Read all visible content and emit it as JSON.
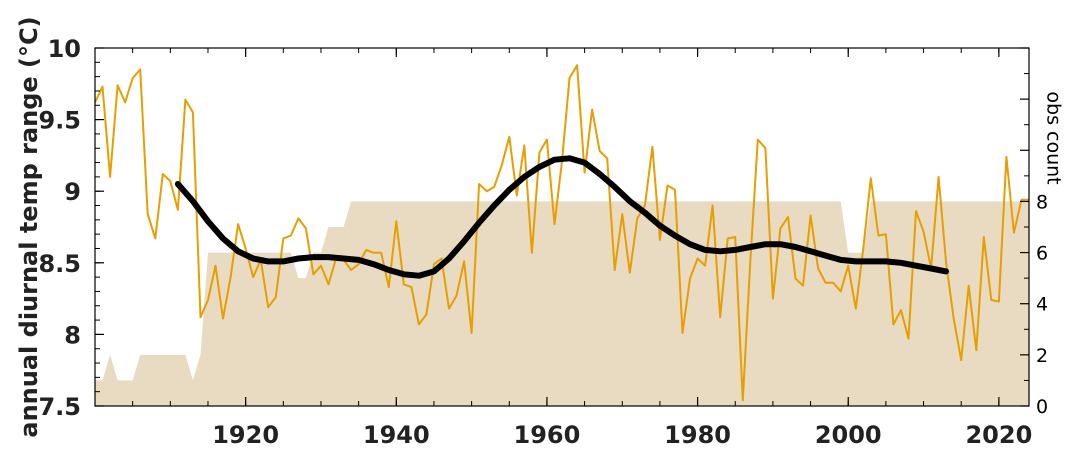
{
  "chart_data": {
    "type": "line",
    "ylabel": "annual diurnal temp range (°C)",
    "y2label": "obs count",
    "xlim": [
      1900,
      2024
    ],
    "ylim": [
      7.5,
      10
    ],
    "y2lim": [
      0,
      14
    ],
    "x_ticks": [
      1920,
      1940,
      1960,
      1980,
      2000,
      2020
    ],
    "x_tick_labels": [
      "1920",
      "1940",
      "1960",
      "1980",
      "2000",
      "2020"
    ],
    "y_ticks": [
      7.5,
      8,
      8.5,
      9,
      9.5,
      10
    ],
    "y_tick_labels": [
      "7.5",
      "8",
      "8.5",
      "9",
      "9.5",
      "10"
    ],
    "y2_ticks": [
      0,
      2,
      4,
      6,
      8
    ],
    "y2_tick_labels": [
      "0",
      "2",
      "4",
      "6",
      "8"
    ],
    "colors": {
      "annual": "#e69f00",
      "smooth": "#000000",
      "count": "#e8dbc1"
    },
    "series": [
      {
        "role": "annual",
        "x": [
          1900,
          1901,
          1902,
          1903,
          1904,
          1905,
          1906,
          1907,
          1908,
          1909,
          1910,
          1911,
          1912,
          1913,
          1914,
          1915,
          1916,
          1917,
          1918,
          1919,
          1920,
          1921,
          1922,
          1923,
          1924,
          1925,
          1926,
          1927,
          1928,
          1929,
          1930,
          1931,
          1932,
          1933,
          1934,
          1935,
          1936,
          1937,
          1938,
          1939,
          1940,
          1941,
          1942,
          1943,
          1944,
          1945,
          1946,
          1947,
          1948,
          1949,
          1950,
          1951,
          1952,
          1953,
          1954,
          1955,
          1956,
          1957,
          1958,
          1959,
          1960,
          1961,
          1962,
          1963,
          1964,
          1965,
          1966,
          1967,
          1968,
          1969,
          1970,
          1971,
          1972,
          1973,
          1974,
          1975,
          1976,
          1977,
          1978,
          1979,
          1980,
          1981,
          1982,
          1983,
          1984,
          1985,
          1986,
          1987,
          1988,
          1989,
          1990,
          1991,
          1992,
          1993,
          1994,
          1995,
          1996,
          1997,
          1998,
          1999,
          2000,
          2001,
          2002,
          2003,
          2004,
          2005,
          2006,
          2007,
          2008,
          2009,
          2010,
          2011,
          2012,
          2013,
          2014,
          2015,
          2016,
          2017,
          2018,
          2019,
          2020,
          2021,
          2022,
          2023,
          2024
        ],
        "y": [
          9.62,
          9.73,
          9.1,
          9.74,
          9.62,
          9.79,
          9.85,
          8.84,
          8.67,
          9.12,
          9.07,
          8.87,
          9.64,
          9.55,
          8.12,
          8.24,
          8.48,
          8.11,
          8.4,
          8.77,
          8.6,
          8.4,
          8.52,
          8.19,
          8.26,
          8.67,
          8.69,
          8.81,
          8.74,
          8.42,
          8.48,
          8.35,
          8.53,
          8.52,
          8.45,
          8.49,
          8.59,
          8.57,
          8.57,
          8.33,
          8.79,
          8.35,
          8.33,
          8.07,
          8.14,
          8.49,
          8.53,
          8.18,
          8.27,
          8.51,
          8.01,
          9.05,
          9.0,
          9.03,
          9.18,
          9.38,
          8.97,
          9.32,
          8.57,
          9.27,
          9.36,
          8.77,
          9.21,
          9.79,
          9.88,
          9.13,
          9.57,
          9.28,
          9.23,
          8.45,
          8.84,
          8.43,
          8.81,
          8.9,
          9.31,
          8.66,
          9.04,
          9.01,
          8.01,
          8.39,
          8.53,
          8.48,
          8.9,
          8.12,
          8.67,
          8.68,
          7.54,
          8.51,
          9.36,
          9.3,
          8.25,
          8.74,
          8.82,
          8.39,
          8.34,
          8.83,
          8.46,
          8.36,
          8.36,
          8.3,
          8.48,
          8.18,
          8.6,
          9.09,
          8.69,
          8.7,
          8.07,
          8.17,
          7.97,
          8.86,
          8.72,
          8.46,
          9.1,
          8.5,
          8.11,
          7.82,
          8.34,
          7.89,
          8.68,
          8.24,
          8.23,
          9.24,
          8.71,
          8.94,
          8.94
        ]
      },
      {
        "role": "smoothed",
        "x": [
          1911,
          1913,
          1915,
          1917,
          1919,
          1921,
          1923,
          1925,
          1927,
          1929,
          1931,
          1933,
          1935,
          1937,
          1939,
          1941,
          1943,
          1945,
          1947,
          1949,
          1951,
          1953,
          1955,
          1957,
          1959,
          1961,
          1963,
          1965,
          1967,
          1969,
          1971,
          1973,
          1975,
          1977,
          1979,
          1981,
          1983,
          1985,
          1987,
          1989,
          1991,
          1993,
          1995,
          1997,
          1999,
          2001,
          2003,
          2005,
          2007,
          2009,
          2011,
          2013
        ],
        "y": [
          9.05,
          8.93,
          8.79,
          8.67,
          8.58,
          8.53,
          8.51,
          8.51,
          8.53,
          8.54,
          8.54,
          8.53,
          8.52,
          8.49,
          8.45,
          8.42,
          8.41,
          8.44,
          8.53,
          8.65,
          8.78,
          8.9,
          9.01,
          9.1,
          9.17,
          9.22,
          9.23,
          9.2,
          9.12,
          9.03,
          8.93,
          8.85,
          8.76,
          8.69,
          8.63,
          8.59,
          8.58,
          8.59,
          8.61,
          8.63,
          8.63,
          8.61,
          8.58,
          8.55,
          8.52,
          8.51,
          8.51,
          8.51,
          8.5,
          8.48,
          8.46,
          8.44
        ]
      },
      {
        "role": "obs_count",
        "x": [
          1900,
          1901,
          1902,
          1903,
          1904,
          1905,
          1906,
          1907,
          1908,
          1909,
          1910,
          1911,
          1912,
          1913,
          1914,
          1915,
          1916,
          1917,
          1918,
          1919,
          1920,
          1921,
          1922,
          1923,
          1924,
          1925,
          1926,
          1927,
          1928,
          1929,
          1930,
          1931,
          1932,
          1933,
          1934,
          1935,
          1936,
          1937,
          1938,
          1939,
          1940,
          1941,
          1942,
          1943,
          1944,
          1945,
          1946,
          1947,
          1948,
          1949,
          1950,
          1951,
          1952,
          1953,
          1954,
          1955,
          1956,
          1957,
          1958,
          1959,
          1960,
          1961,
          1962,
          1963,
          1964,
          1965,
          1966,
          1967,
          1968,
          1969,
          1970,
          1971,
          1972,
          1973,
          1974,
          1975,
          1976,
          1977,
          1978,
          1979,
          1980,
          1981,
          1982,
          1983,
          1984,
          1985,
          1986,
          1987,
          1988,
          1989,
          1990,
          1991,
          1992,
          1993,
          1994,
          1995,
          1996,
          1997,
          1998,
          1999,
          2000,
          2001,
          2002,
          2003,
          2004,
          2005,
          2006,
          2007,
          2008,
          2009,
          2010,
          2011,
          2012,
          2013,
          2014,
          2015,
          2016,
          2017,
          2018,
          2019,
          2020,
          2021,
          2022,
          2023,
          2024
        ],
        "y": [
          1,
          1,
          2,
          1,
          1,
          1,
          2,
          2,
          2,
          2,
          2,
          2,
          2,
          1,
          2,
          6,
          6,
          6,
          6,
          6,
          6,
          6,
          6,
          6,
          6,
          6,
          6,
          5,
          5,
          6,
          6,
          7,
          7,
          7,
          8,
          8,
          8,
          8,
          8,
          8,
          8,
          8,
          8,
          8,
          8,
          8,
          8,
          8,
          8,
          8,
          8,
          8,
          8,
          8,
          8,
          8,
          8,
          8,
          8,
          8,
          8,
          8,
          8,
          8,
          8,
          8,
          8,
          8,
          8,
          8,
          8,
          8,
          8,
          8,
          8,
          8,
          8,
          8,
          8,
          8,
          8,
          8,
          8,
          8,
          8,
          8,
          8,
          8,
          8,
          8,
          8,
          8,
          8,
          8,
          8,
          8,
          8,
          8,
          8,
          8,
          6,
          6,
          6,
          8,
          8,
          8,
          8,
          8,
          8,
          8,
          8,
          8,
          8,
          8,
          8,
          8,
          8,
          8,
          8,
          8,
          8,
          8,
          8,
          8,
          8
        ]
      }
    ]
  }
}
